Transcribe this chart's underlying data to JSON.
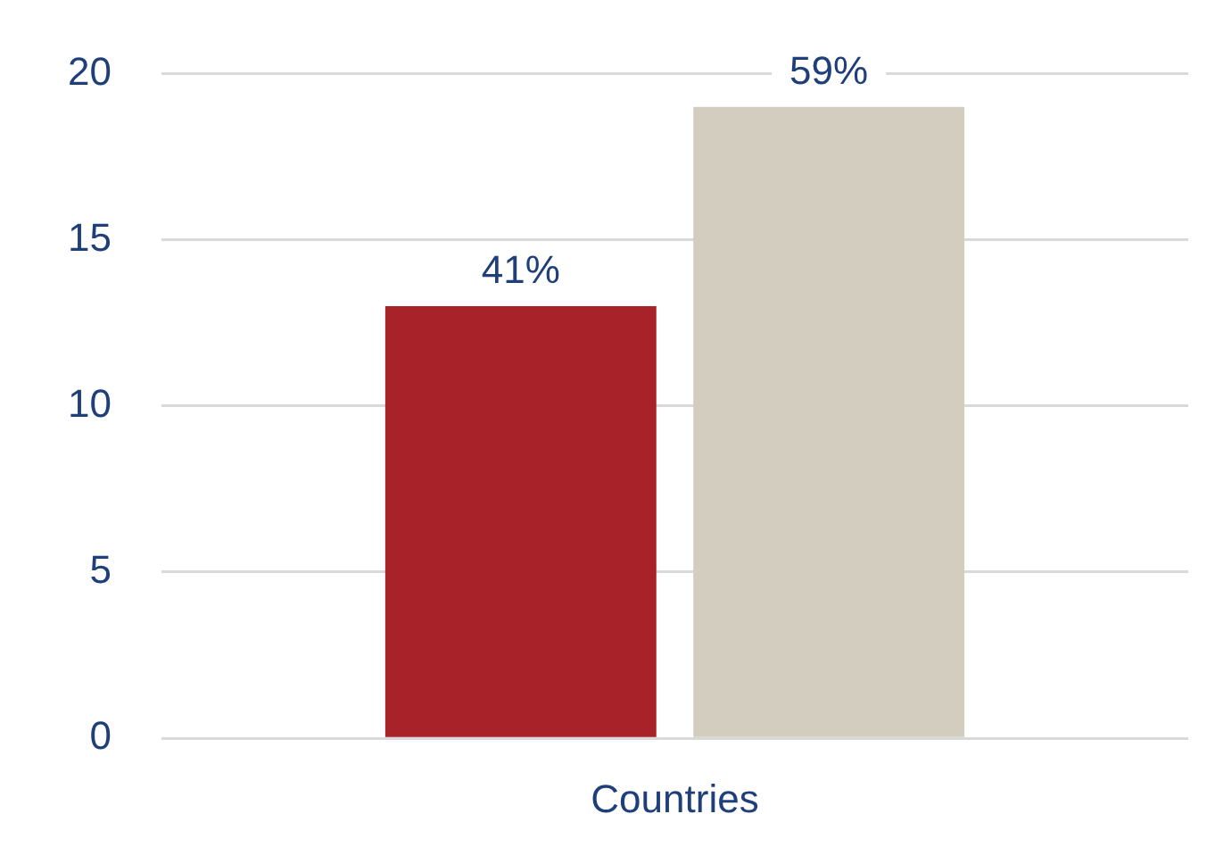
{
  "chart_data": {
    "type": "bar",
    "categories": [
      "Countries"
    ],
    "series": [
      {
        "color": "#a8222a",
        "values": [
          13
        ]
      },
      {
        "color": "#d3cdbf",
        "values": [
          19
        ]
      }
    ],
    "annotations": [
      "41%",
      "59%"
    ],
    "ylim": [
      0,
      20
    ],
    "yticks": [
      0,
      5,
      10,
      15,
      20
    ],
    "grid": "y",
    "legend": false
  }
}
